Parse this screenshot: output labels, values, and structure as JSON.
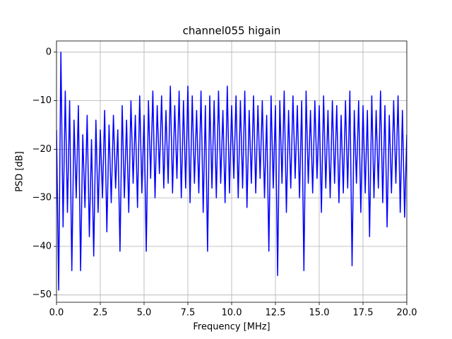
{
  "chart_data": {
    "type": "line",
    "title": "channel055 higain",
    "x_label": "Frequency [MHz]",
    "y_label": "PSD [dB]",
    "color": "#0000ff",
    "grid": true,
    "xlim": [
      0,
      20
    ],
    "ylim": [
      -51.5,
      2.3
    ],
    "xticks": [
      {
        "value": 0,
        "label": "0.0"
      },
      2.5,
      {
        "value": 5,
        "label": "5.0"
      },
      7.5,
      {
        "value": 10,
        "label": "10.0"
      },
      12.5,
      {
        "value": 15,
        "label": "15.0"
      },
      17.5,
      {
        "value": 20,
        "label": "20.0"
      }
    ],
    "yticks": [
      0,
      {
        "value": -10,
        "label": "−10"
      },
      {
        "value": -20,
        "label": "−20"
      },
      {
        "value": -30,
        "label": "−30"
      },
      {
        "value": -40,
        "label": "−40"
      },
      {
        "value": -50,
        "label": "−50"
      }
    ],
    "x": [
      0,
      0.125,
      0.25,
      0.375,
      0.5,
      0.625,
      0.75,
      0.875,
      1,
      1.125,
      1.25,
      1.375,
      1.5,
      1.625,
      1.75,
      1.875,
      2,
      2.125,
      2.25,
      2.375,
      2.5,
      2.625,
      2.75,
      2.875,
      3,
      3.125,
      3.25,
      3.375,
      3.5,
      3.625,
      3.75,
      3.875,
      4,
      4.125,
      4.25,
      4.375,
      4.5,
      4.625,
      4.75,
      4.875,
      5,
      5.125,
      5.25,
      5.375,
      5.5,
      5.625,
      5.75,
      5.875,
      6,
      6.125,
      6.25,
      6.375,
      6.5,
      6.625,
      6.75,
      6.875,
      7,
      7.125,
      7.25,
      7.375,
      7.5,
      7.625,
      7.75,
      7.875,
      8,
      8.125,
      8.25,
      8.375,
      8.5,
      8.625,
      8.75,
      8.875,
      9,
      9.125,
      9.25,
      9.375,
      9.5,
      9.625,
      9.75,
      9.875,
      10,
      10.125,
      10.25,
      10.375,
      10.5,
      10.625,
      10.75,
      10.875,
      11,
      11.125,
      11.25,
      11.375,
      11.5,
      11.625,
      11.75,
      11.875,
      12,
      12.125,
      12.25,
      12.375,
      12.5,
      12.625,
      12.75,
      12.875,
      13,
      13.125,
      13.25,
      13.375,
      13.5,
      13.625,
      13.75,
      13.875,
      14,
      14.125,
      14.25,
      14.375,
      14.5,
      14.625,
      14.75,
      14.875,
      15,
      15.125,
      15.25,
      15.375,
      15.5,
      15.625,
      15.75,
      15.875,
      16,
      16.125,
      16.25,
      16.375,
      16.5,
      16.625,
      16.75,
      16.875,
      17,
      17.125,
      17.25,
      17.375,
      17.5,
      17.625,
      17.75,
      17.875,
      18,
      18.125,
      18.25,
      18.375,
      18.5,
      18.625,
      18.75,
      18.875,
      19,
      19.125,
      19.25,
      19.375,
      19.5,
      19.625,
      19.75,
      19.875,
      20
    ],
    "values": [
      -16,
      -49,
      0,
      -36,
      -8,
      -33,
      -10,
      -45,
      -14,
      -30,
      -11,
      -45,
      -17,
      -32,
      -13,
      -38,
      -18,
      -42,
      -14,
      -33,
      -16,
      -30,
      -12,
      -37,
      -15,
      -31,
      -13,
      -28,
      -16,
      -41,
      -11,
      -30,
      -14,
      -33,
      -10,
      -27,
      -13,
      -32,
      -9,
      -29,
      -13,
      -41,
      -10,
      -26,
      -8,
      -30,
      -11,
      -25,
      -9,
      -28,
      -12,
      -27,
      -7,
      -29,
      -11,
      -26,
      -8,
      -30,
      -10,
      -28,
      -7,
      -31,
      -9,
      -27,
      -12,
      -29,
      -8,
      -33,
      -11,
      -41,
      -9,
      -28,
      -10,
      -30,
      -8,
      -27,
      -12,
      -31,
      -7,
      -29,
      -11,
      -26,
      -9,
      -30,
      -10,
      -28,
      -8,
      -32,
      -12,
      -27,
      -9,
      -29,
      -11,
      -26,
      -10,
      -30,
      -13,
      -41,
      -9,
      -28,
      -11,
      -46,
      -10,
      -27,
      -8,
      -33,
      -12,
      -28,
      -9,
      -26,
      -11,
      -30,
      -10,
      -45,
      -8,
      -27,
      -12,
      -29,
      -10,
      -26,
      -11,
      -33,
      -9,
      -28,
      -12,
      -30,
      -10,
      -27,
      -11,
      -31,
      -13,
      -29,
      -10,
      -28,
      -8,
      -44,
      -12,
      -27,
      -10,
      -33,
      -11,
      -29,
      -12,
      -38,
      -9,
      -30,
      -12,
      -28,
      -8,
      -31,
      -11,
      -36,
      -13,
      -29,
      -10,
      -27,
      -9,
      -33,
      -12,
      -34,
      -17
    ]
  }
}
